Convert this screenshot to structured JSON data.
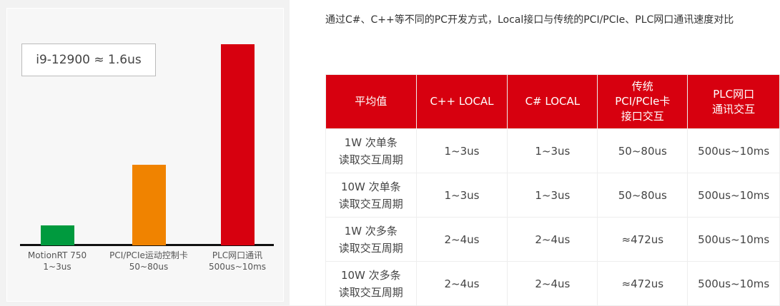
{
  "chart_data": {
    "type": "bar",
    "annotation": "i9-12900 ≈ 1.6us",
    "categories": [
      "MotionRT 750",
      "PCI/PCIe运动控制卡",
      "PLC网口通讯"
    ],
    "value_labels": [
      "1~3us",
      "50~80us",
      "500us~10ms"
    ],
    "relative_heights": [
      10,
      40,
      100
    ],
    "colors": [
      "#009a3e",
      "#f08300",
      "#d7000f"
    ]
  },
  "description": "通过C#、C++等不同的PC开发方式，Local接口与传统的PCI/PCIe、PLC网口通讯速度对比",
  "table": {
    "headers": [
      "平均值",
      "C++ LOCAL",
      "C# LOCAL",
      "传统\nPCI/PCIe卡\n接口交互",
      "PLC网口\n通讯交互"
    ],
    "rows": [
      [
        "1W 次单条\n读取交互周期",
        "1~3us",
        "1~3us",
        "50~80us",
        "500us~10ms"
      ],
      [
        "10W 次单条\n读取交互周期",
        "1~3us",
        "1~3us",
        "50~80us",
        "500us~10ms"
      ],
      [
        "1W 次多条\n读取交互周期",
        "2~4us",
        "2~4us",
        "≈472us",
        "500us~10ms"
      ],
      [
        "10W 次多条\n读取交互周期",
        "2~4us",
        "2~4us",
        "≈472us",
        "500us~10ms"
      ]
    ]
  }
}
